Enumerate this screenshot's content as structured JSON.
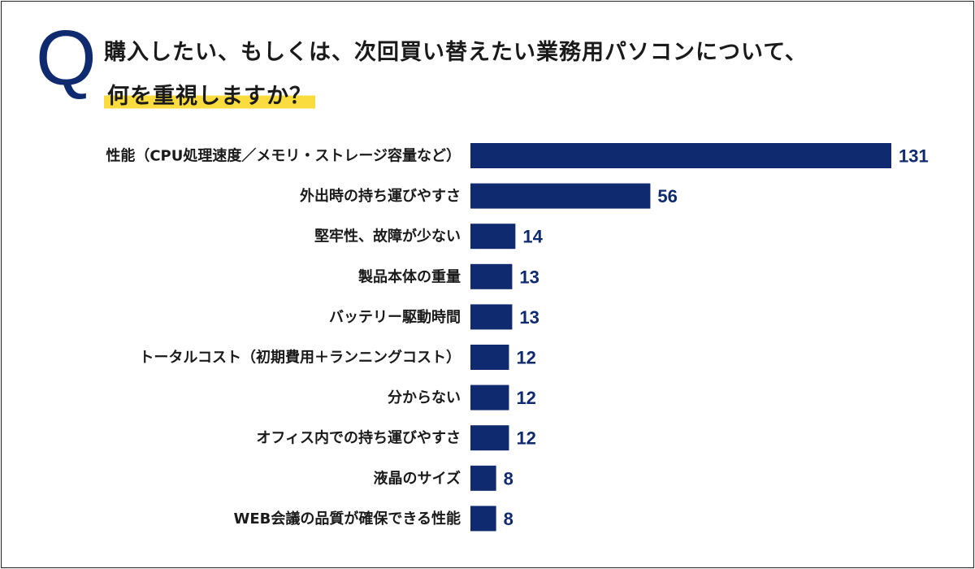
{
  "title": {
    "q_mark": "Q",
    "line1": "購入したい、もしくは、次回買い替えたい業務用パソコンについて、",
    "line2": "何を重視しますか？"
  },
  "colors": {
    "bar": "#0f2a6e",
    "highlight": "#fbdc3e",
    "text": "#1a1a1a"
  },
  "chart_data": {
    "type": "bar",
    "orientation": "horizontal",
    "categories": [
      "性能（CPU処理速度／メモリ・ストレージ容量など）",
      "外出時の持ち運びやすさ",
      "堅牢性、故障が少ない",
      "製品本体の重量",
      "バッテリー駆動時間",
      "トータルコスト（初期費用＋ランニングコスト）",
      "分からない",
      "オフィス内での持ち運びやすさ",
      "液晶のサイズ",
      "WEB会議の品質が確保できる性能"
    ],
    "values": [
      131,
      56,
      14,
      13,
      13,
      12,
      12,
      12,
      8,
      8
    ],
    "data_labels": true,
    "xlim": [
      0,
      131
    ],
    "grid": false,
    "legend": "none"
  }
}
